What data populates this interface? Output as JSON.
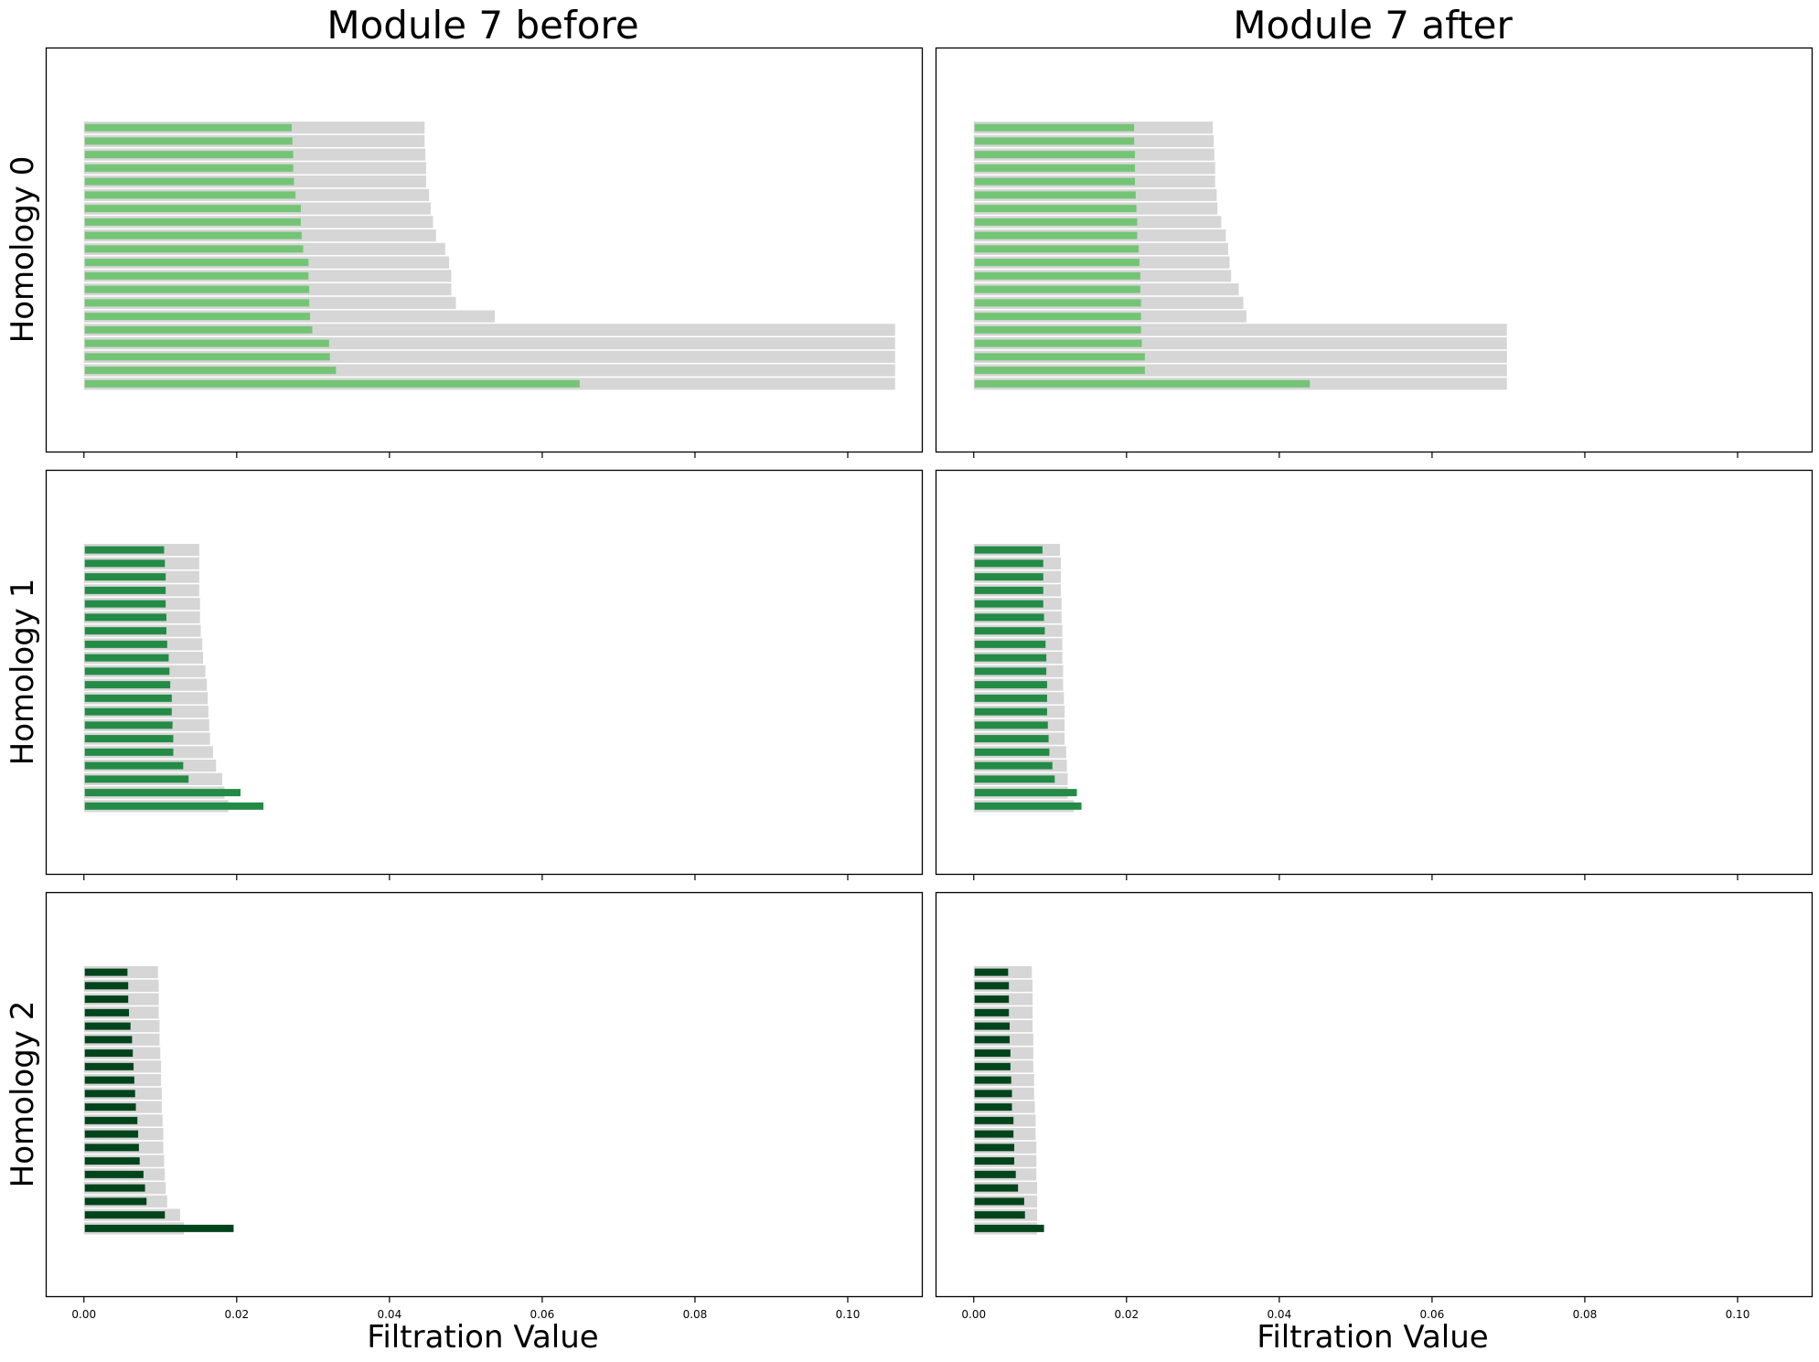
{
  "figure": {
    "columns": [
      "Module 7 before",
      "Module 7 after"
    ],
    "rows": [
      "Homology 0",
      "Homology 1",
      "Homology 2"
    ],
    "xlabel": "Filtration Value",
    "x_ticks": [
      "0.00",
      "0.02",
      "0.04",
      "0.06",
      "0.08",
      "0.10"
    ],
    "xlim": [
      -0.005,
      0.1097
    ],
    "background_bar_color": "#d6d6d6",
    "homology_colors": [
      "#74c476",
      "#238b45",
      "#00441b"
    ]
  },
  "chart_data": [
    {
      "type": "bar",
      "column": "Module 7 before",
      "row": "Homology 0",
      "orientation": "horizontal",
      "xlim": [
        -0.005,
        0.1097
      ],
      "death": [
        0.0446,
        0.0446,
        0.0447,
        0.0448,
        0.0448,
        0.0452,
        0.0454,
        0.0457,
        0.0461,
        0.0473,
        0.0478,
        0.0481,
        0.0481,
        0.0487,
        0.0538,
        0.1062,
        0.1062,
        0.1062,
        0.1062,
        0.1062
      ],
      "lifetime": [
        0.0272,
        0.0273,
        0.0274,
        0.0274,
        0.0275,
        0.0277,
        0.0284,
        0.0284,
        0.0285,
        0.0287,
        0.0294,
        0.0294,
        0.0295,
        0.0295,
        0.0296,
        0.0299,
        0.0321,
        0.0322,
        0.033,
        0.0649
      ]
    },
    {
      "type": "bar",
      "column": "Module 7 after",
      "row": "Homology 0",
      "orientation": "horizontal",
      "xlim": [
        -0.005,
        0.1097
      ],
      "death": [
        0.0313,
        0.0314,
        0.0315,
        0.0316,
        0.0316,
        0.0318,
        0.0319,
        0.0324,
        0.033,
        0.0333,
        0.0335,
        0.0337,
        0.0347,
        0.0353,
        0.0357,
        0.0698,
        0.0698,
        0.0698,
        0.0698,
        0.0698
      ],
      "lifetime": [
        0.021,
        0.021,
        0.0211,
        0.0211,
        0.0211,
        0.0212,
        0.0213,
        0.0214,
        0.0214,
        0.0216,
        0.0217,
        0.0218,
        0.0218,
        0.0219,
        0.0219,
        0.0219,
        0.022,
        0.0224,
        0.0224,
        0.044
      ]
    },
    {
      "type": "bar",
      "column": "Module 7 before",
      "row": "Homology 1",
      "orientation": "horizontal",
      "xlim": [
        -0.005,
        0.1097
      ],
      "death": [
        0.0151,
        0.0151,
        0.0151,
        0.0151,
        0.0152,
        0.0152,
        0.0153,
        0.0155,
        0.0156,
        0.0159,
        0.0161,
        0.0162,
        0.0163,
        0.0164,
        0.0165,
        0.0169,
        0.0173,
        0.0181,
        0.0184,
        0.0189
      ],
      "lifetime": [
        0.0105,
        0.0106,
        0.0107,
        0.0107,
        0.0107,
        0.0108,
        0.0108,
        0.0109,
        0.0111,
        0.0112,
        0.0113,
        0.0115,
        0.0115,
        0.0116,
        0.0117,
        0.0117,
        0.013,
        0.0137,
        0.0205,
        0.0235
      ]
    },
    {
      "type": "bar",
      "column": "Module 7 after",
      "row": "Homology 1",
      "orientation": "horizontal",
      "xlim": [
        -0.005,
        0.1097
      ],
      "death": [
        0.0113,
        0.0114,
        0.0114,
        0.0114,
        0.0115,
        0.0115,
        0.0116,
        0.0116,
        0.0116,
        0.0117,
        0.0117,
        0.0118,
        0.0119,
        0.0119,
        0.0119,
        0.0121,
        0.0122,
        0.0123,
        0.0123,
        0.0131
      ],
      "lifetime": [
        0.009,
        0.0091,
        0.0091,
        0.0091,
        0.0091,
        0.0092,
        0.0093,
        0.0094,
        0.0095,
        0.0095,
        0.0096,
        0.0096,
        0.0096,
        0.0097,
        0.0098,
        0.0099,
        0.0103,
        0.0106,
        0.0135,
        0.0141
      ]
    },
    {
      "type": "bar",
      "column": "Module 7 before",
      "row": "Homology 2",
      "orientation": "horizontal",
      "xlim": [
        -0.005,
        0.1097
      ],
      "death": [
        0.0097,
        0.0098,
        0.0098,
        0.0098,
        0.0099,
        0.0099,
        0.01,
        0.0101,
        0.0101,
        0.0102,
        0.0102,
        0.0103,
        0.0104,
        0.0104,
        0.0105,
        0.0106,
        0.0107,
        0.0109,
        0.0126,
        0.0131
      ],
      "lifetime": [
        0.0057,
        0.0058,
        0.0058,
        0.0059,
        0.0061,
        0.0063,
        0.0064,
        0.0065,
        0.0066,
        0.0067,
        0.0068,
        0.007,
        0.0071,
        0.0072,
        0.0073,
        0.0078,
        0.008,
        0.0082,
        0.0106,
        0.0196
      ]
    },
    {
      "type": "bar",
      "column": "Module 7 after",
      "row": "Homology 2",
      "orientation": "horizontal",
      "xlim": [
        -0.005,
        0.1097
      ],
      "death": [
        0.0076,
        0.0077,
        0.0077,
        0.0077,
        0.0077,
        0.0078,
        0.0078,
        0.0078,
        0.0079,
        0.0079,
        0.008,
        0.0081,
        0.0081,
        0.0082,
        0.0082,
        0.0082,
        0.0083,
        0.0083,
        0.0083,
        0.0083
      ],
      "lifetime": [
        0.0045,
        0.0046,
        0.0046,
        0.0046,
        0.0047,
        0.0047,
        0.0048,
        0.0048,
        0.0049,
        0.005,
        0.005,
        0.0052,
        0.0052,
        0.0053,
        0.0053,
        0.0055,
        0.0058,
        0.0066,
        0.0067,
        0.0092
      ]
    }
  ]
}
